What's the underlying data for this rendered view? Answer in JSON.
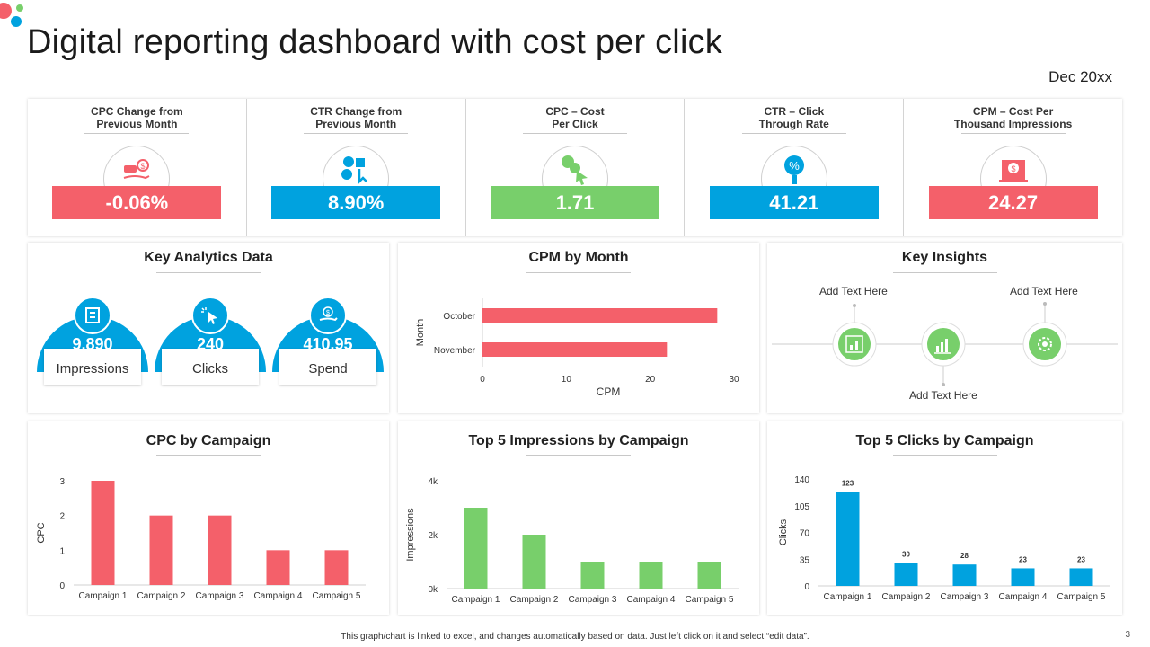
{
  "header": {
    "title": "Digital reporting dashboard with cost per click",
    "date": "Dec 20xx"
  },
  "colors": {
    "red": "#f4606a",
    "blue": "#00a2df",
    "green": "#78cf6b"
  },
  "kpis": [
    {
      "label": "CPC Change from\nPrevious Month",
      "value": "-0.06%",
      "color": "#f4606a",
      "icon": "money-hand-icon"
    },
    {
      "label": "CTR Change from\nPrevious Month",
      "value": "8.90%",
      "color": "#00a2df",
      "icon": "coins-click-icon"
    },
    {
      "label": "CPC – Cost\nPer Click",
      "value": "1.71",
      "color": "#78cf6b",
      "icon": "dollar-cursor-icon"
    },
    {
      "label": "CTR – Click\nThrough Rate",
      "value": "41.21",
      "color": "#00a2df",
      "icon": "percent-click-icon"
    },
    {
      "label": "CPM – Cost Per\nThousand Impressions",
      "value": "24.27",
      "color": "#f4606a",
      "icon": "dollar-monitor-icon"
    }
  ],
  "key_analytics": {
    "title": "Key Analytics Data",
    "metrics": [
      {
        "value": "9,890",
        "label": "Impressions",
        "icon": "building-icon"
      },
      {
        "value": "240",
        "label": "Clicks",
        "icon": "cursor-click-icon"
      },
      {
        "value": "410.95",
        "label": "Spend",
        "icon": "money-hand-icon"
      }
    ]
  },
  "key_insights": {
    "title": "Key Insights",
    "items": [
      {
        "text": "Add Text Here",
        "icon": "chart-growth-icon"
      },
      {
        "text": "Add Text Here",
        "icon": "bar-chart-icon"
      },
      {
        "text": "Add Text Here",
        "icon": "gear-icon"
      }
    ]
  },
  "chart_data": [
    {
      "type": "bar",
      "orientation": "horizontal",
      "title": "CPM by Month",
      "categories": [
        "October",
        "November"
      ],
      "values": [
        28,
        22
      ],
      "xlabel": "CPM",
      "ylabel": "Month",
      "xlim": [
        0,
        30
      ],
      "ticks": [
        "0",
        "10",
        "20",
        "30"
      ],
      "color": "#f4606a"
    },
    {
      "type": "bar",
      "title": "CPC by Campaign",
      "categories": [
        "Campaign 1",
        "Campaign 2",
        "Campaign 3",
        "Campaign 4",
        "Campaign 5"
      ],
      "values": [
        3,
        2,
        2,
        1,
        1
      ],
      "xlabel": "",
      "ylabel": "CPC",
      "ylim": [
        0,
        3
      ],
      "ticks": [
        "0",
        "1",
        "2",
        "3"
      ],
      "color": "#f4606a"
    },
    {
      "type": "bar",
      "title": "Top 5 Impressions by Campaign",
      "categories": [
        "Campaign 1",
        "Campaign 2",
        "Campaign 3",
        "Campaign 4",
        "Campaign 5"
      ],
      "values": [
        3000,
        2000,
        1000,
        1000,
        1000
      ],
      "xlabel": "",
      "ylabel": "Impressions",
      "ylim": [
        0,
        4000
      ],
      "ticks": [
        "0k",
        "2k",
        "4k"
      ],
      "color": "#78cf6b"
    },
    {
      "type": "bar",
      "title": "Top 5 Clicks by Campaign",
      "categories": [
        "Campaign 1",
        "Campaign 2",
        "Campaign 3",
        "Campaign 4",
        "Campaign 5"
      ],
      "values": [
        123,
        30,
        28,
        23,
        23
      ],
      "data_labels": [
        "123",
        "30",
        "28",
        "23",
        "23"
      ],
      "xlabel": "",
      "ylabel": "Clicks",
      "ylim": [
        0,
        140
      ],
      "ticks": [
        "0",
        "35",
        "70",
        "105",
        "140"
      ],
      "color": "#00a2df"
    }
  ],
  "footer": {
    "note": "This graph/chart is linked to excel, and changes automatically based on data. Just left click on it and select “edit data”.",
    "page": "3"
  }
}
